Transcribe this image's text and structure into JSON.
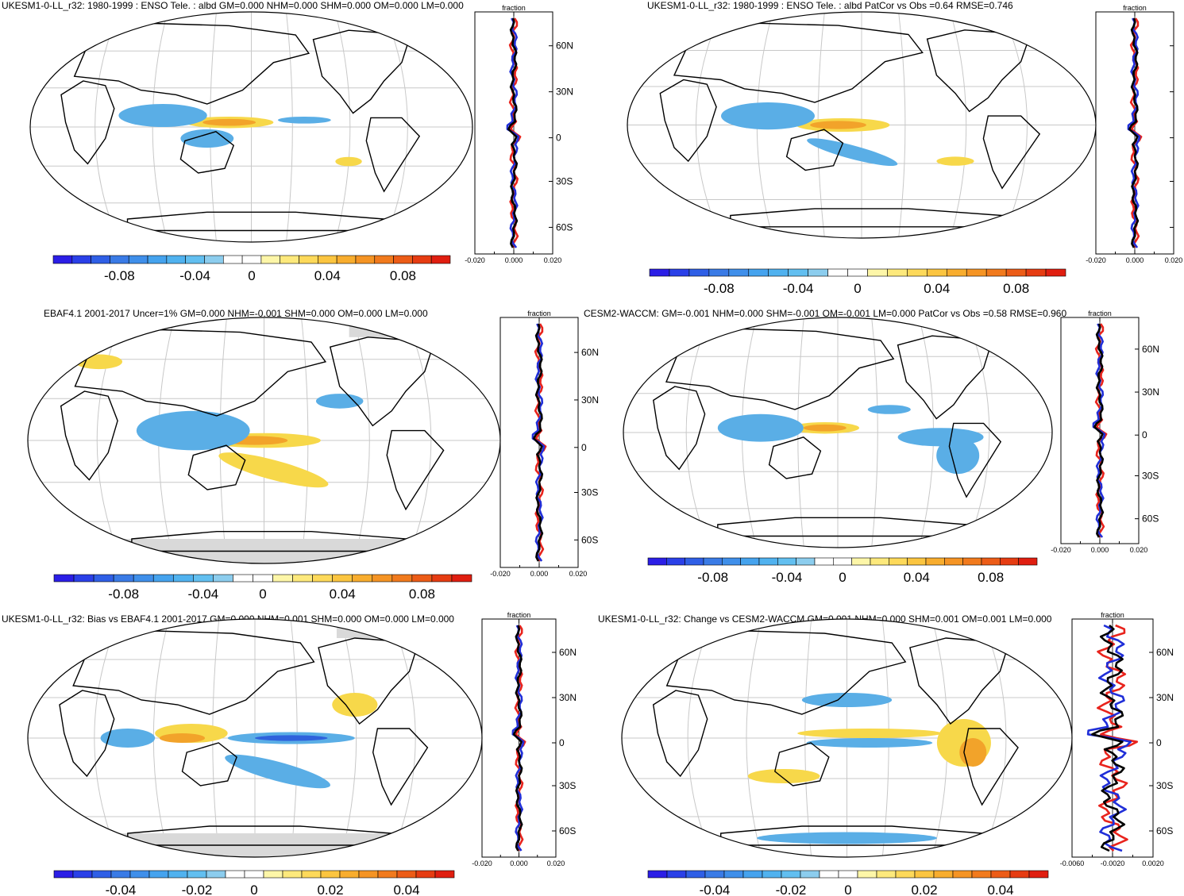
{
  "panels": [
    {
      "id": "top-left",
      "title": "UKESM1-0-LL_r32: 1980-1999 : ENSO Tele. : albd GM=0.000 NHM=0.000 SHM=0.000 OM=0.000 LM=0.000",
      "colorbar": {
        "labels": [
          "-0.08",
          "-0.04",
          "0",
          "0.04",
          "0.08"
        ]
      },
      "zonal_mean": {
        "title": "fraction",
        "x_ticks": [
          "-0.020",
          "0.000",
          "0.020"
        ],
        "lat_labels": [
          "60N",
          "30N",
          "0",
          "30S",
          "60S"
        ]
      }
    },
    {
      "id": "top-right",
      "title": "UKESM1-0-LL_r32: 1980-1999 : ENSO Tele. : albd PatCor vs Obs =0.64 RMSE=0.746",
      "colorbar": {
        "labels": [
          "-0.08",
          "-0.04",
          "0",
          "0.04",
          "0.08"
        ]
      },
      "zonal_mean": {
        "title": "fraction",
        "x_ticks": [
          "-0.020",
          "0.000",
          "0.020"
        ],
        "lat_labels": []
      }
    },
    {
      "id": "middle-left",
      "title": "EBAF4.1 2001-2017 Uncer=1% GM=0.000 NHM=-0.001 SHM=0.000 OM=0.000 LM=0.000",
      "colorbar": {
        "labels": [
          "-0.08",
          "-0.04",
          "0",
          "0.04",
          "0.08"
        ]
      },
      "zonal_mean": {
        "title": "fraction",
        "x_ticks": [
          "-0.020",
          "0.000",
          "0.020"
        ],
        "lat_labels": [
          "60N",
          "30N",
          "0",
          "30S",
          "60S"
        ]
      }
    },
    {
      "id": "middle-right",
      "title": "CESM2-WACCM: GM=-0.001 NHM=0.000 SHM=-0.001 OM=-0.001 LM=0.000 PatCor vs Obs =0.58 RMSE=0.960",
      "colorbar": {
        "labels": [
          "-0.08",
          "-0.04",
          "0",
          "0.04",
          "0.08"
        ]
      },
      "zonal_mean": {
        "title": "fraction",
        "x_ticks": [
          "-0.020",
          "0.000",
          "0.020"
        ],
        "lat_labels": [
          "60N",
          "30N",
          "0",
          "30S",
          "60S"
        ]
      }
    },
    {
      "id": "bottom-left",
      "title": "UKESM1-0-LL_r32: Bias vs EBAF4.1 2001-2017 GM=0.000 NHM=0.001 SHM=0.000 OM=0.000 LM=0.000",
      "colorbar": {
        "labels": [
          "-0.04",
          "-0.02",
          "0",
          "0.02",
          "0.04"
        ]
      },
      "zonal_mean": {
        "title": "fraction",
        "x_ticks": [
          "-0.020",
          "0.000",
          "0.020"
        ],
        "lat_labels": [
          "60N",
          "30N",
          "0",
          "30S",
          "60S"
        ]
      }
    },
    {
      "id": "bottom-right",
      "title": "UKESM1-0-LL_r32: Change vs CESM2-WACCM GM=0.001 NHM=0.000 SHM=0.001 OM=0.001 LM=0.000",
      "colorbar": {
        "labels": [
          "-0.04",
          "-0.02",
          "0",
          "0.02",
          "0.04"
        ]
      },
      "zonal_mean": {
        "title": "fraction",
        "x_ticks": [
          "-0.0060",
          "-0.0020",
          "0.0020"
        ],
        "lat_labels": [
          "60N",
          "30N",
          "0",
          "30S",
          "60S"
        ]
      }
    }
  ],
  "colorbar_colors": [
    "#2b1ee6",
    "#2a40e8",
    "#2f5fe6",
    "#3a7be6",
    "#3f8fea",
    "#45a3ee",
    "#50b2ef",
    "#62bff0",
    "#8ccdee",
    "#ffffff",
    "#ffffff",
    "#fdf6a8",
    "#fde97c",
    "#fdd95a",
    "#fbc540",
    "#f8ad2e",
    "#f59424",
    "#f17a1d",
    "#ec5c17",
    "#e63c12",
    "#e01e10"
  ],
  "colors": {
    "negative": "#5aaee6",
    "positive": "#f7d84a",
    "strong_positive": "#f2a32a",
    "strong_negative": "#2f62dc",
    "land_missing": "#d9d9d9",
    "line_red": "#e8231c",
    "line_blue": "#1f2ed8",
    "line_black": "#000000",
    "grid": "#c8c8c8"
  }
}
